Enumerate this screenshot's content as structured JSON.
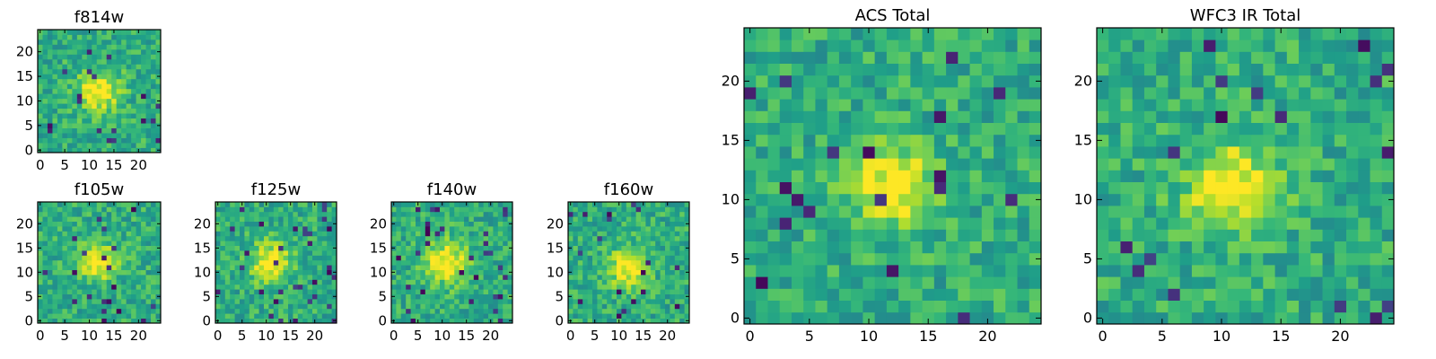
{
  "chart_data": [
    {
      "type": "heatmap",
      "title": "f814w",
      "grid_size": 25,
      "xlim": [
        -0.5,
        24.5
      ],
      "ylim": [
        -0.5,
        24.5
      ],
      "xticks": [
        0,
        5,
        10,
        15,
        20
      ],
      "yticks": [
        0,
        5,
        10,
        15,
        20
      ],
      "peak": [
        12,
        12
      ],
      "sigma": 3.0,
      "seed": 17,
      "colormap": "viridis",
      "xlabel": "",
      "ylabel": ""
    },
    {
      "type": "heatmap",
      "title": "f105w",
      "grid_size": 25,
      "xlim": [
        -0.5,
        24.5
      ],
      "ylim": [
        -0.5,
        24.5
      ],
      "xticks": [
        0,
        5,
        10,
        15,
        20
      ],
      "yticks": [
        0,
        5,
        10,
        15,
        20
      ],
      "peak": [
        12,
        12
      ],
      "sigma": 2.6,
      "seed": 31,
      "colormap": "viridis",
      "xlabel": "",
      "ylabel": ""
    },
    {
      "type": "heatmap",
      "title": "f125w",
      "grid_size": 25,
      "xlim": [
        -0.5,
        24.5
      ],
      "ylim": [
        -0.5,
        24.5
      ],
      "xticks": [
        0,
        5,
        10,
        15,
        20
      ],
      "yticks": [
        0,
        5,
        10,
        15,
        20
      ],
      "peak": [
        11,
        12
      ],
      "sigma": 2.8,
      "seed": 47,
      "colormap": "viridis",
      "xlabel": "",
      "ylabel": ""
    },
    {
      "type": "heatmap",
      "title": "f140w",
      "grid_size": 25,
      "xlim": [
        -0.5,
        24.5
      ],
      "ylim": [
        -0.5,
        24.5
      ],
      "xticks": [
        0,
        5,
        10,
        15,
        20
      ],
      "yticks": [
        0,
        5,
        10,
        15,
        20
      ],
      "peak": [
        11,
        12
      ],
      "sigma": 3.0,
      "seed": 59,
      "colormap": "viridis",
      "xlabel": "",
      "ylabel": ""
    },
    {
      "type": "heatmap",
      "title": "f160w",
      "grid_size": 25,
      "xlim": [
        -0.5,
        24.5
      ],
      "ylim": [
        -0.5,
        24.5
      ],
      "xticks": [
        0,
        5,
        10,
        15,
        20
      ],
      "yticks": [
        0,
        5,
        10,
        15,
        20
      ],
      "peak": [
        12,
        11
      ],
      "sigma": 2.8,
      "seed": 73,
      "colormap": "viridis",
      "xlabel": "",
      "ylabel": ""
    },
    {
      "type": "heatmap",
      "title": "ACS Total",
      "grid_size": 25,
      "xlim": [
        -0.5,
        24.5
      ],
      "ylim": [
        -0.5,
        24.5
      ],
      "xticks": [
        0,
        5,
        10,
        15,
        20
      ],
      "yticks": [
        0,
        5,
        10,
        15,
        20
      ],
      "peak": [
        12,
        11
      ],
      "sigma": 2.5,
      "seed": 101,
      "colormap": "viridis",
      "xlabel": "",
      "ylabel": ""
    },
    {
      "type": "heatmap",
      "title": "WFC3 IR Total",
      "grid_size": 25,
      "xlim": [
        -0.5,
        24.5
      ],
      "ylim": [
        -0.5,
        24.5
      ],
      "xticks": [
        0,
        5,
        10,
        15,
        20
      ],
      "yticks": [
        0,
        5,
        10,
        15,
        20
      ],
      "peak": [
        11,
        11
      ],
      "sigma": 2.7,
      "seed": 131,
      "colormap": "viridis",
      "xlabel": "",
      "ylabel": ""
    }
  ]
}
